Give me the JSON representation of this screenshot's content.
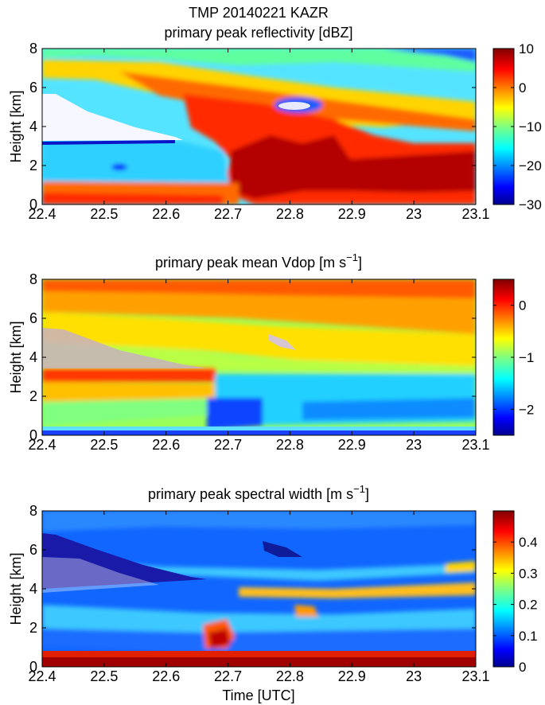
{
  "figure": {
    "suptitle": "TMP 20140221 KAZR"
  },
  "chart_data": [
    {
      "type": "heatmap",
      "title": "primary peak reflectivity [dBZ]",
      "xlabel": "",
      "ylabel": "Height [km]",
      "xlim": [
        22.4,
        23.1
      ],
      "ylim": [
        0,
        8
      ],
      "x_ticks": [
        22.4,
        22.5,
        22.6,
        22.7,
        22.8,
        22.9,
        23,
        23.1
      ],
      "x_tick_labels": [
        "22.4",
        "22.5",
        "22.6",
        "22.7",
        "22.8",
        "22.9",
        "23",
        "23.1"
      ],
      "y_ticks": [
        0,
        2,
        4,
        6,
        8
      ],
      "y_tick_labels": [
        "0",
        "2",
        "4",
        "6",
        "8"
      ],
      "colorbar": {
        "colormap": "jet",
        "range": [
          -30,
          10
        ],
        "ticks": [
          10,
          0,
          -10,
          -20,
          -30
        ],
        "tick_labels": [
          "10",
          "0",
          "−10",
          "−20",
          "−30"
        ]
      }
    },
    {
      "type": "heatmap",
      "title_parts": {
        "main": "primary peak mean Vdop [m s",
        "sup": "−1",
        "end": "]"
      },
      "xlabel": "",
      "ylabel": "Height [km]",
      "xlim": [
        22.4,
        23.1
      ],
      "ylim": [
        0,
        8
      ],
      "x_ticks": [
        22.4,
        22.5,
        22.6,
        22.7,
        22.8,
        22.9,
        23,
        23.1
      ],
      "x_tick_labels": [
        "22.4",
        "22.5",
        "22.6",
        "22.7",
        "22.8",
        "22.9",
        "23",
        "23.1"
      ],
      "y_ticks": [
        0,
        2,
        4,
        6,
        8
      ],
      "y_tick_labels": [
        "0",
        "2",
        "4",
        "6",
        "8"
      ],
      "colorbar": {
        "colormap": "jet",
        "range": [
          -2.5,
          0.5
        ],
        "ticks": [
          0,
          -1,
          -2
        ],
        "tick_labels": [
          "0",
          "−1",
          "−2"
        ]
      }
    },
    {
      "type": "heatmap",
      "title_parts": {
        "main": "primary peak spectral width [m s",
        "sup": "−1",
        "end": "]"
      },
      "xlabel": "Time [UTC]",
      "ylabel": "Height [km]",
      "xlim": [
        22.4,
        23.1
      ],
      "ylim": [
        0,
        8
      ],
      "x_ticks": [
        22.4,
        22.5,
        22.6,
        22.7,
        22.8,
        22.9,
        23,
        23.1
      ],
      "x_tick_labels": [
        "22.4",
        "22.5",
        "22.6",
        "22.7",
        "22.8",
        "22.9",
        "23",
        "23.1"
      ],
      "y_ticks": [
        0,
        2,
        4,
        6,
        8
      ],
      "y_tick_labels": [
        "0",
        "2",
        "4",
        "6",
        "8"
      ],
      "colorbar": {
        "colormap": "jet",
        "range": [
          0,
          0.5
        ],
        "ticks": [
          0.4,
          0.3,
          0.2,
          0.1,
          0
        ],
        "tick_labels": [
          "0.4",
          "0.3",
          "0.2",
          "0.1",
          "0"
        ]
      }
    }
  ]
}
